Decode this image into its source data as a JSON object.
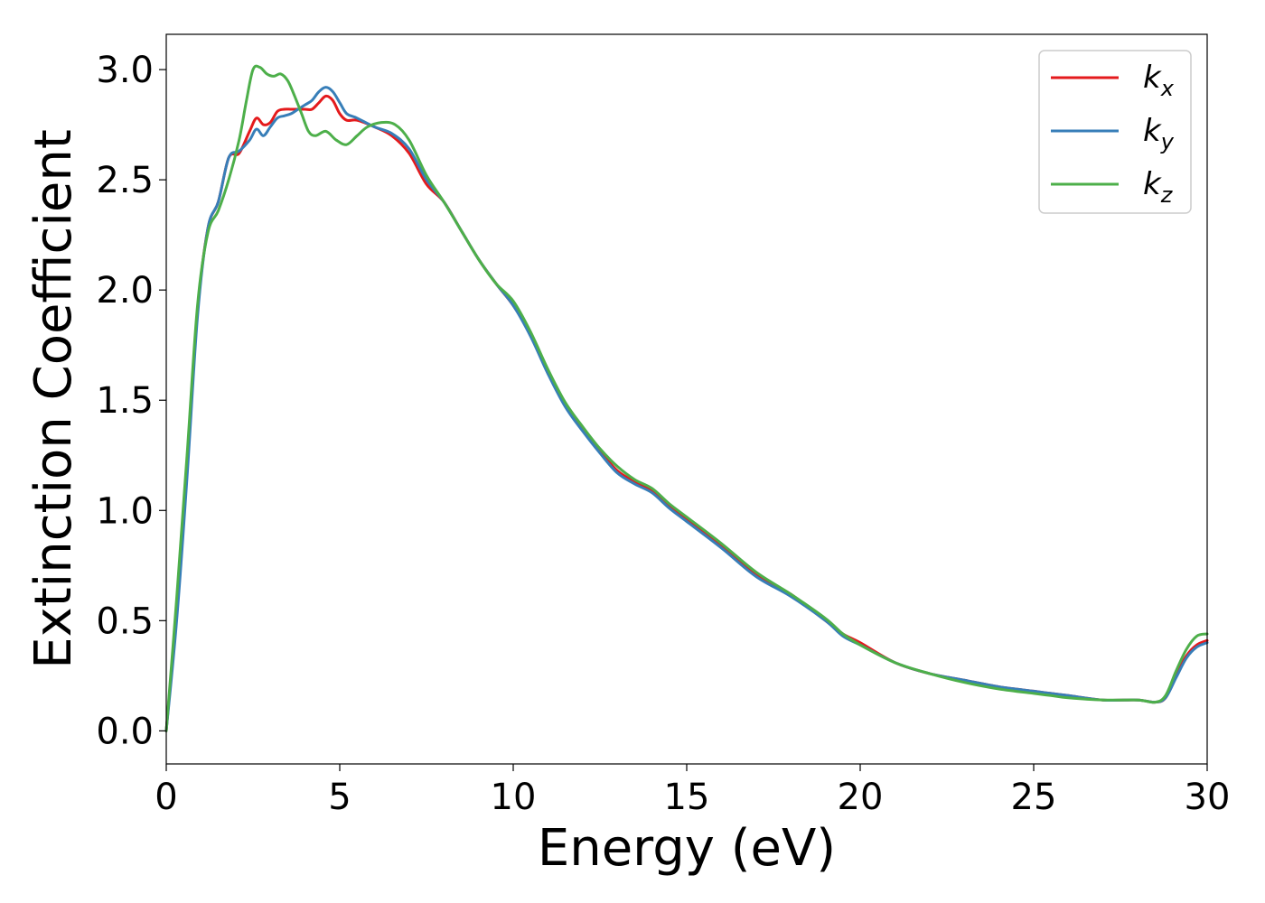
{
  "chart_data": {
    "type": "line",
    "title": "",
    "xlabel": "Energy (eV)",
    "ylabel": "Extinction Coefficient",
    "xlim": [
      0,
      30
    ],
    "ylim": [
      -0.15,
      3.16
    ],
    "xticks": [
      0,
      5,
      10,
      15,
      20,
      25,
      30
    ],
    "yticks": [
      0.0,
      0.5,
      1.0,
      1.5,
      2.0,
      2.5,
      3.0
    ],
    "xtick_labels": [
      "0",
      "5",
      "10",
      "15",
      "20",
      "25",
      "30"
    ],
    "ytick_labels": [
      "0.0",
      "0.5",
      "1.0",
      "1.5",
      "2.0",
      "2.5",
      "3.0"
    ],
    "grid": false,
    "legend_position": "top-right",
    "series": [
      {
        "name": "k",
        "subscript": "x",
        "color": "#e41a1c",
        "x": [
          0,
          0.3,
          0.6,
          0.9,
          1.2,
          1.5,
          1.8,
          2.1,
          2.4,
          2.6,
          2.8,
          3.0,
          3.2,
          3.4,
          3.6,
          3.8,
          4.0,
          4.2,
          4.4,
          4.6,
          4.8,
          5.0,
          5.2,
          5.5,
          6.0,
          6.5,
          7.0,
          7.5,
          8.0,
          8.5,
          9.0,
          9.5,
          10.0,
          10.5,
          11.0,
          11.5,
          12.0,
          12.5,
          13.0,
          13.5,
          14.0,
          14.5,
          15.0,
          16.0,
          17.0,
          18.0,
          19.0,
          19.5,
          20.0,
          21.0,
          22.0,
          23.0,
          24.0,
          25.0,
          25.5,
          26.0,
          27.0,
          28.0,
          28.5,
          28.8,
          29.1,
          29.4,
          29.7,
          30.0
        ],
        "y": [
          0.0,
          0.55,
          1.2,
          1.9,
          2.28,
          2.4,
          2.6,
          2.62,
          2.72,
          2.78,
          2.75,
          2.76,
          2.81,
          2.82,
          2.82,
          2.82,
          2.82,
          2.82,
          2.85,
          2.88,
          2.86,
          2.8,
          2.77,
          2.77,
          2.74,
          2.7,
          2.62,
          2.48,
          2.4,
          2.27,
          2.14,
          2.03,
          1.93,
          1.8,
          1.63,
          1.48,
          1.37,
          1.27,
          1.18,
          1.13,
          1.09,
          1.02,
          0.96,
          0.84,
          0.71,
          0.62,
          0.5,
          0.44,
          0.4,
          0.31,
          0.26,
          0.23,
          0.2,
          0.18,
          0.17,
          0.16,
          0.14,
          0.14,
          0.13,
          0.15,
          0.25,
          0.34,
          0.39,
          0.41
        ]
      },
      {
        "name": "k",
        "subscript": "y",
        "color": "#377eb8",
        "x": [
          0,
          0.3,
          0.6,
          0.9,
          1.2,
          1.5,
          1.8,
          2.1,
          2.4,
          2.6,
          2.8,
          3.0,
          3.2,
          3.4,
          3.6,
          3.8,
          4.0,
          4.2,
          4.4,
          4.6,
          4.8,
          5.0,
          5.2,
          5.5,
          6.0,
          6.5,
          7.0,
          7.5,
          8.0,
          8.5,
          9.0,
          9.5,
          10.0,
          10.5,
          11.0,
          11.5,
          12.0,
          12.5,
          13.0,
          13.5,
          14.0,
          14.5,
          15.0,
          16.0,
          17.0,
          18.0,
          19.0,
          19.5,
          20.0,
          21.0,
          22.0,
          23.0,
          24.0,
          25.0,
          25.5,
          26.0,
          27.0,
          28.0,
          28.5,
          28.8,
          29.1,
          29.4,
          29.7,
          30.0
        ],
        "y": [
          0.0,
          0.5,
          1.15,
          1.88,
          2.28,
          2.4,
          2.6,
          2.63,
          2.68,
          2.73,
          2.7,
          2.74,
          2.78,
          2.79,
          2.8,
          2.82,
          2.84,
          2.86,
          2.9,
          2.92,
          2.9,
          2.85,
          2.8,
          2.78,
          2.74,
          2.71,
          2.64,
          2.5,
          2.4,
          2.27,
          2.14,
          2.03,
          1.93,
          1.79,
          1.62,
          1.47,
          1.36,
          1.26,
          1.17,
          1.12,
          1.08,
          1.01,
          0.95,
          0.83,
          0.7,
          0.61,
          0.5,
          0.43,
          0.39,
          0.31,
          0.26,
          0.23,
          0.2,
          0.18,
          0.17,
          0.16,
          0.14,
          0.14,
          0.13,
          0.15,
          0.24,
          0.33,
          0.38,
          0.4
        ]
      },
      {
        "name": "k",
        "subscript": "z",
        "color": "#4daf4a",
        "x": [
          0,
          0.3,
          0.6,
          0.9,
          1.2,
          1.5,
          1.8,
          2.1,
          2.3,
          2.5,
          2.7,
          2.9,
          3.1,
          3.3,
          3.5,
          3.7,
          3.9,
          4.1,
          4.3,
          4.6,
          4.9,
          5.2,
          5.5,
          5.8,
          6.2,
          6.6,
          7.0,
          7.5,
          8.0,
          8.5,
          9.0,
          9.5,
          10.0,
          10.5,
          11.0,
          11.5,
          12.0,
          12.5,
          13.0,
          13.5,
          14.0,
          14.5,
          15.0,
          16.0,
          17.0,
          18.0,
          19.0,
          19.5,
          20.0,
          21.0,
          22.0,
          23.0,
          24.0,
          25.0,
          25.5,
          26.0,
          27.0,
          28.0,
          28.5,
          28.8,
          29.1,
          29.4,
          29.7,
          30.0
        ],
        "y": [
          0.0,
          0.6,
          1.25,
          1.93,
          2.26,
          2.36,
          2.5,
          2.68,
          2.85,
          3.0,
          3.01,
          2.98,
          2.97,
          2.98,
          2.95,
          2.88,
          2.8,
          2.72,
          2.7,
          2.72,
          2.68,
          2.66,
          2.7,
          2.74,
          2.76,
          2.75,
          2.68,
          2.52,
          2.4,
          2.27,
          2.14,
          2.03,
          1.95,
          1.81,
          1.64,
          1.49,
          1.38,
          1.28,
          1.2,
          1.14,
          1.1,
          1.03,
          0.97,
          0.85,
          0.72,
          0.62,
          0.51,
          0.44,
          0.39,
          0.31,
          0.26,
          0.22,
          0.19,
          0.17,
          0.16,
          0.15,
          0.14,
          0.14,
          0.13,
          0.16,
          0.27,
          0.37,
          0.43,
          0.44
        ]
      }
    ]
  }
}
